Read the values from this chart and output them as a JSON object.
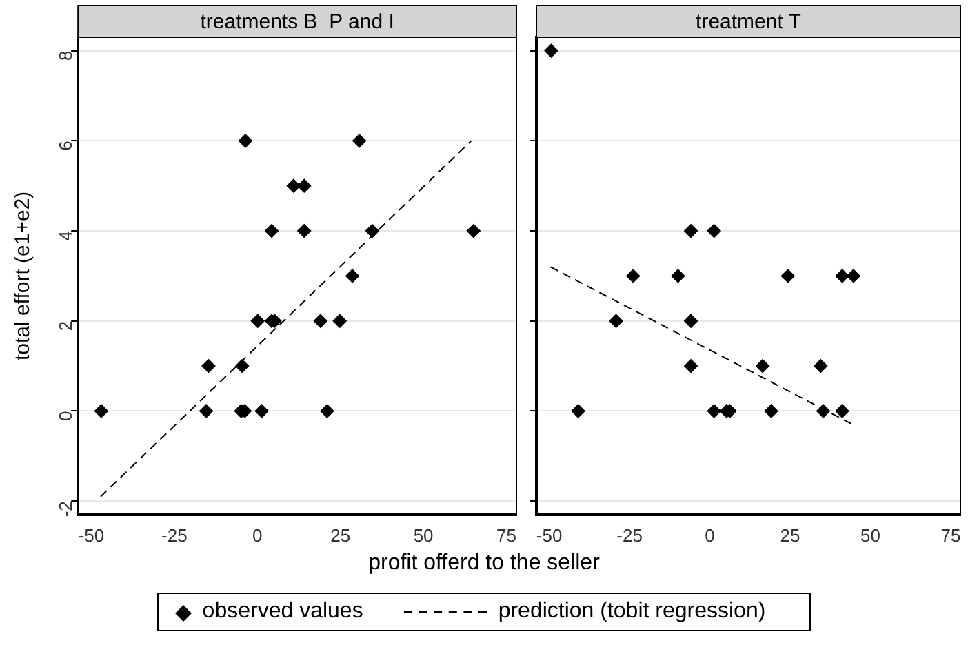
{
  "chart_data": [
    {
      "type": "scatter",
      "title": "treatments B  P and I",
      "xlabel": "profit offerd to the seller",
      "ylabel": "total effort (e1+e2)",
      "xlim": [
        -54,
        78
      ],
      "xticks": [
        -50,
        -25,
        0,
        25,
        50,
        75
      ],
      "ylim": [
        -2.3,
        8.3
      ],
      "yticks": [
        -2,
        0,
        2,
        4,
        6,
        8
      ],
      "grid": "y",
      "legend": "bottom",
      "marker": "diamond",
      "series": [
        {
          "name": "observed values",
          "color": "#000000",
          "x": [
            -47,
            -15.4,
            -14.7,
            -4.6,
            -4.9,
            -3.8,
            -3.6,
            1.3,
            0.1,
            4.3,
            5.2,
            4.3,
            10.9,
            14.1,
            14.1,
            19,
            21,
            24.8,
            28.6,
            30.7,
            34.6,
            65.1
          ],
          "values": [
            0,
            0,
            1,
            1,
            0,
            0,
            6,
            0,
            2,
            2,
            2,
            4,
            5,
            5,
            4,
            2,
            0,
            2,
            3,
            6,
            4,
            4
          ]
        },
        {
          "name": "prediction (tobit regression)",
          "type": "line",
          "line_style": "dashed",
          "marker": "none",
          "color": "#000000",
          "x": [
            -47.2,
            64.4
          ],
          "values": [
            -1.9,
            6
          ]
        }
      ]
    },
    {
      "type": "scatter",
      "title": "treatment T",
      "xlim": [
        -54,
        78
      ],
      "xticks": [
        -50,
        -25,
        0,
        25,
        50,
        75
      ],
      "ylim": [
        -2.3,
        8.3
      ],
      "yticks": [
        -2,
        0,
        2,
        4,
        6,
        8
      ],
      "grid": "y",
      "tick_labels": "x",
      "marker": "diamond",
      "series": [
        {
          "color": "#000000",
          "x": [
            -49.4,
            -41,
            -29.2,
            -23.9,
            -9.9,
            -5.9,
            1.3,
            -5.9,
            -5.9,
            1.3,
            5.2,
            6.2,
            19.1,
            16.4,
            24.3,
            34.5,
            35.3,
            41.2,
            44.7,
            41.2
          ],
          "values": [
            8,
            0,
            2,
            3,
            3,
            4,
            4,
            2,
            1,
            0,
            0,
            0,
            0,
            1,
            3,
            1,
            0,
            3,
            3,
            0
          ]
        },
        {
          "type": "line",
          "line_style": "dashed",
          "marker": "none",
          "color": "#000000",
          "x": [
            -49.6,
            44.5
          ],
          "values": [
            3.2,
            -0.3
          ]
        }
      ]
    }
  ]
}
